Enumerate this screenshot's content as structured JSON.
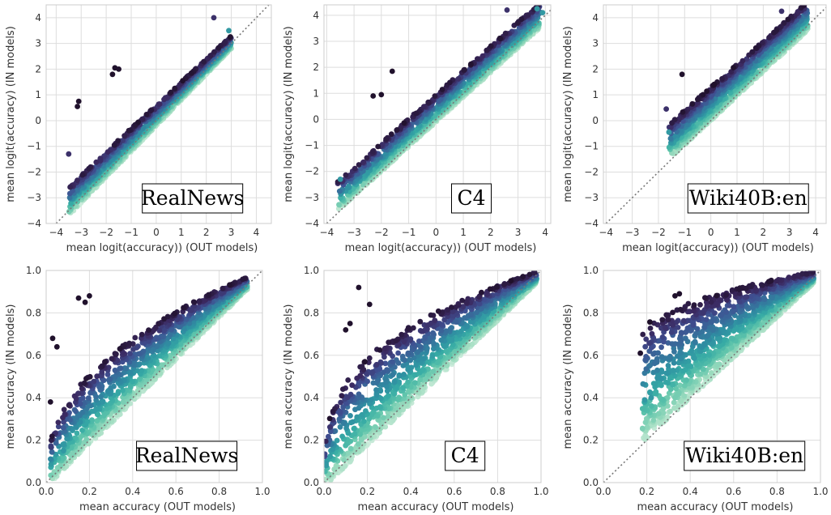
{
  "figure": {
    "layout": "2 rows x 3 columns of scatter panels",
    "colormap": [
      "#1b0c22",
      "#3b2960",
      "#3f4f91",
      "#37709c",
      "#2f8ea2",
      "#36aaa5",
      "#5ec4ab",
      "#9edcbf",
      "#d9f0e3"
    ],
    "diagonal_color": "#777777"
  },
  "chart_data": [
    {
      "type": "scatter",
      "dataset": "RealNews",
      "row": "logit",
      "title": "RealNews",
      "xlabel": "mean logit(accuracy)) (OUT models)",
      "ylabel": "mean logit(accuracy) (IN models)",
      "xlim": [
        -4.4,
        4.6
      ],
      "ylim": [
        -4,
        4.5
      ],
      "xticks": [
        -4,
        -3,
        -2,
        -1,
        0,
        1,
        2,
        3,
        4
      ],
      "yticks": [
        -4,
        -3,
        -2,
        -1,
        0,
        1,
        2,
        3,
        4
      ],
      "grid": true,
      "diagonal": "y = x (dotted)",
      "cloud": {
        "xmin": -3.5,
        "xmax": 3.0,
        "lo_slope": 1.0,
        "lo_intercept": -0.2,
        "hi_slope": 0.9,
        "hi_intercept": 0.6
      },
      "outliers": [
        {
          "x": -3.1,
          "y": 0.75
        },
        {
          "x": -3.15,
          "y": 0.55
        },
        {
          "x": -1.65,
          "y": 2.05
        },
        {
          "x": -1.5,
          "y": 2.0
        },
        {
          "x": -1.75,
          "y": 1.8
        },
        {
          "x": 2.3,
          "y": 4.0
        },
        {
          "x": 2.9,
          "y": 3.5
        },
        {
          "x": -3.5,
          "y": -1.3
        }
      ]
    },
    {
      "type": "scatter",
      "dataset": "C4",
      "row": "logit",
      "title": "C4",
      "xlabel": "mean logit(accuracy)) (OUT models)",
      "ylabel": "mean logit(accuracy) (IN models)",
      "xlim": [
        -4.1,
        4.2
      ],
      "ylim": [
        -4,
        4.4
      ],
      "xticks": [
        -4,
        -3,
        -2,
        -1,
        0,
        1,
        2,
        3,
        4
      ],
      "yticks": [
        -4,
        -3,
        -2,
        -1,
        0,
        1,
        2,
        3,
        4
      ],
      "grid": true,
      "diagonal": "y = x (dotted)",
      "cloud": {
        "xmin": -3.6,
        "xmax": 3.8,
        "lo_slope": 0.95,
        "lo_intercept": -0.1,
        "hi_slope": 0.93,
        "hi_intercept": 0.95
      },
      "outliers": [
        {
          "x": -1.6,
          "y": 1.85
        },
        {
          "x": -2.3,
          "y": 0.9
        },
        {
          "x": -2.0,
          "y": 0.95
        },
        {
          "x": 2.6,
          "y": 4.2
        },
        {
          "x": 3.7,
          "y": 4.25
        },
        {
          "x": 3.9,
          "y": 4.1
        },
        {
          "x": -3.5,
          "y": -2.3
        }
      ]
    },
    {
      "type": "scatter",
      "dataset": "Wiki40B:en",
      "row": "logit",
      "title": "Wiki40B:en",
      "xlabel": "mean logit(accuracy)) (OUT models)",
      "ylabel": "mean logit(accuracy) (IN models)",
      "xlim": [
        -4.1,
        4.4
      ],
      "ylim": [
        -4,
        4.5
      ],
      "xticks": [
        -4,
        -3,
        -2,
        -1,
        0,
        1,
        2,
        3,
        4
      ],
      "yticks": [
        -4,
        -3,
        -2,
        -1,
        0,
        1,
        2,
        3,
        4
      ],
      "grid": true,
      "diagonal": "y = x (dotted)",
      "cloud": {
        "xmin": -1.6,
        "xmax": 3.7,
        "lo_slope": 0.95,
        "lo_intercept": 0.0,
        "hi_slope": 0.9,
        "hi_intercept": 1.3
      },
      "outliers": [
        {
          "x": -1.7,
          "y": 0.45
        },
        {
          "x": -1.6,
          "y": -0.45
        },
        {
          "x": -1.1,
          "y": 1.8
        },
        {
          "x": 2.7,
          "y": 4.25
        }
      ]
    },
    {
      "type": "scatter",
      "dataset": "RealNews",
      "row": "accuracy",
      "title": "RealNews",
      "xlabel": "mean accuracy (OUT models)",
      "ylabel": "mean accuracy (IN models)",
      "xlim": [
        0,
        1.0
      ],
      "ylim": [
        0,
        1.0
      ],
      "xticks": [
        0.0,
        0.2,
        0.4,
        0.6,
        0.8,
        1.0
      ],
      "yticks": [
        0.0,
        0.2,
        0.4,
        0.6,
        0.8,
        1.0
      ],
      "grid": true,
      "diagonal": "y = x (dotted)",
      "cloud": {
        "xmin": 0.02,
        "xmax": 0.93,
        "lo_slope": 1.0,
        "lo_intercept": -0.02,
        "hi_pow": 0.42,
        "hi_scale": 1.0
      },
      "outliers": [
        {
          "x": 0.2,
          "y": 0.88
        },
        {
          "x": 0.15,
          "y": 0.87
        },
        {
          "x": 0.18,
          "y": 0.85
        },
        {
          "x": 0.03,
          "y": 0.68
        },
        {
          "x": 0.05,
          "y": 0.64
        },
        {
          "x": 0.08,
          "y": 0.15
        },
        {
          "x": 0.02,
          "y": 0.38
        }
      ]
    },
    {
      "type": "scatter",
      "dataset": "C4",
      "row": "accuracy",
      "title": "C4",
      "xlabel": "mean accuracy (OUT models)",
      "ylabel": "mean accuracy (IN models)",
      "xlim": [
        0,
        1.0
      ],
      "ylim": [
        0,
        1.0
      ],
      "xticks": [
        0.0,
        0.2,
        0.4,
        0.6,
        0.8,
        1.0
      ],
      "yticks": [
        0.0,
        0.2,
        0.4,
        0.6,
        0.8,
        1.0
      ],
      "grid": true,
      "diagonal": "y = x (dotted)",
      "cloud": {
        "xmin": 0.0,
        "xmax": 0.98,
        "lo_slope": 0.98,
        "lo_intercept": -0.02,
        "hi_pow": 0.33,
        "hi_scale": 1.0
      },
      "outliers": [
        {
          "x": 0.16,
          "y": 0.92
        },
        {
          "x": 0.21,
          "y": 0.84
        },
        {
          "x": 0.1,
          "y": 0.72
        },
        {
          "x": 0.12,
          "y": 0.75
        },
        {
          "x": 0.01,
          "y": 0.08
        }
      ]
    },
    {
      "type": "scatter",
      "dataset": "Wiki40B:en",
      "row": "accuracy",
      "title": "Wiki40B:en",
      "xlabel": "mean accuracy (OUT models)",
      "ylabel": "mean accuracy (IN models)",
      "xlim": [
        0,
        1.0
      ],
      "ylim": [
        0,
        1.0
      ],
      "xticks": [
        0.0,
        0.2,
        0.4,
        0.6,
        0.8,
        1.0
      ],
      "yticks": [
        0.0,
        0.2,
        0.4,
        0.6,
        0.8,
        1.0
      ],
      "grid": true,
      "diagonal": "y = x (dotted)",
      "cloud": {
        "xmin": 0.18,
        "xmax": 0.97,
        "lo_slope": 0.95,
        "lo_intercept": 0.02,
        "hi_pow": 0.18,
        "hi_scale": 1.0
      },
      "outliers": [
        {
          "x": 0.17,
          "y": 0.61
        },
        {
          "x": 0.19,
          "y": 0.39
        },
        {
          "x": 0.22,
          "y": 0.4
        },
        {
          "x": 0.35,
          "y": 0.89
        },
        {
          "x": 0.33,
          "y": 0.88
        }
      ]
    }
  ]
}
